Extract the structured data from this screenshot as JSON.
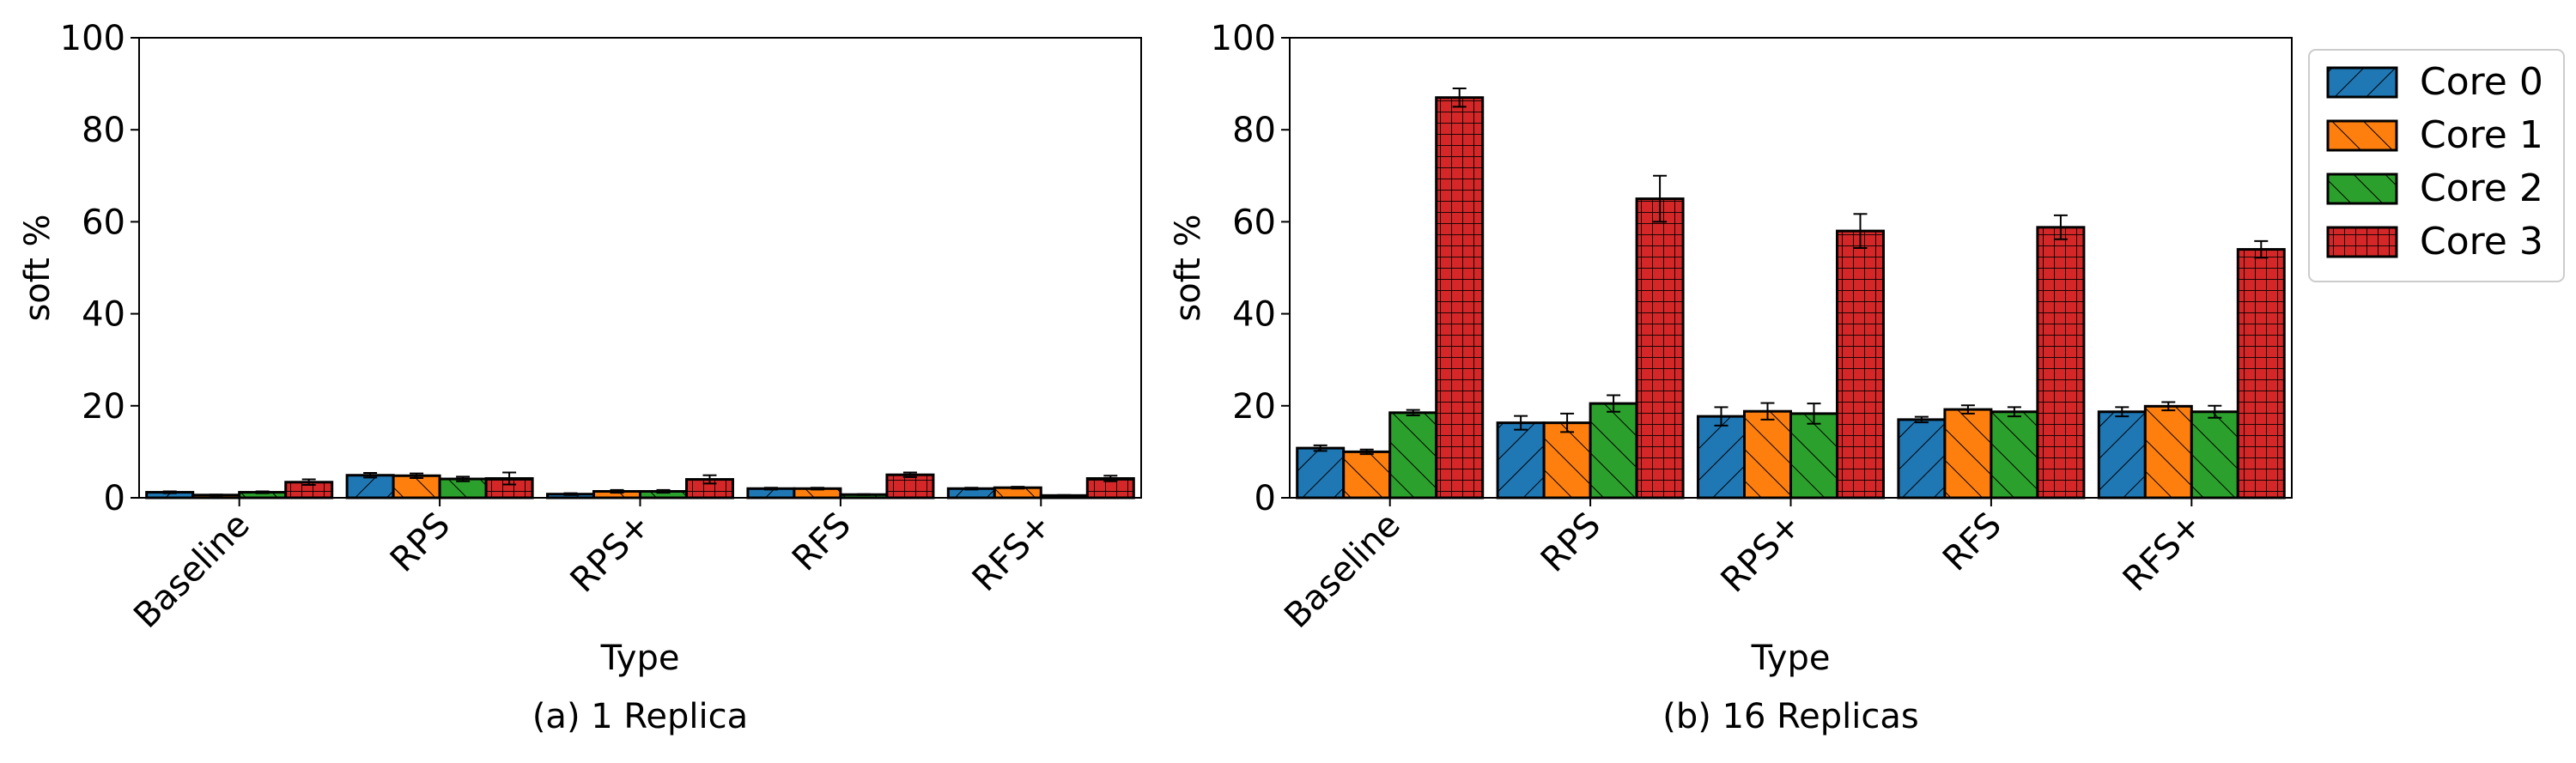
{
  "series_colors": {
    "Core 0": "#1f77b4",
    "Core 1": "#ff7f0e",
    "Core 2": "#2ca02c",
    "Core 3": "#d62728"
  },
  "legend": {
    "placement": "right, outside plot (b)",
    "entries": [
      "Core 0",
      "Core 1",
      "Core 2",
      "Core 3"
    ]
  },
  "chart_data": [
    {
      "type": "bar",
      "caption": "(a) 1 Replica",
      "xlabel": "Type",
      "ylabel": "soft %",
      "ylim": [
        0,
        100
      ],
      "yticks": [
        0,
        20,
        40,
        60,
        80,
        100
      ],
      "categories": [
        "Baseline",
        "RPS",
        "RPS+",
        "RFS",
        "RFS+"
      ],
      "series": [
        {
          "name": "Core 0",
          "values": [
            1.2,
            4.9,
            0.8,
            2.0,
            2.0
          ],
          "errors": [
            0.2,
            0.5,
            0.2,
            0.2,
            0.2
          ]
        },
        {
          "name": "Core 1",
          "values": [
            0.6,
            4.8,
            1.4,
            2.0,
            2.2
          ],
          "errors": [
            0.1,
            0.5,
            0.3,
            0.2,
            0.2
          ]
        },
        {
          "name": "Core 2",
          "values": [
            1.2,
            4.1,
            1.4,
            0.7,
            0.5
          ],
          "errors": [
            0.2,
            0.5,
            0.3,
            0.1,
            0.1
          ]
        },
        {
          "name": "Core 3",
          "values": [
            3.4,
            4.2,
            4.0,
            5.0,
            4.2
          ],
          "errors": [
            0.6,
            1.3,
            0.9,
            0.5,
            0.6
          ]
        }
      ]
    },
    {
      "type": "bar",
      "caption": "(b) 16 Replicas",
      "xlabel": "Type",
      "ylabel": "soft %",
      "ylim": [
        0,
        100
      ],
      "yticks": [
        0,
        20,
        40,
        60,
        80,
        100
      ],
      "categories": [
        "Baseline",
        "RPS",
        "RPS+",
        "RFS",
        "RFS+"
      ],
      "series": [
        {
          "name": "Core 0",
          "values": [
            10.8,
            16.3,
            17.7,
            17.0,
            18.7
          ],
          "errors": [
            0.6,
            1.5,
            2.0,
            0.6,
            1.0
          ]
        },
        {
          "name": "Core 1",
          "values": [
            10.0,
            16.3,
            18.8,
            19.2,
            19.9
          ],
          "errors": [
            0.5,
            2.0,
            1.8,
            0.9,
            0.9
          ]
        },
        {
          "name": "Core 2",
          "values": [
            18.5,
            20.5,
            18.3,
            18.7,
            18.7
          ],
          "errors": [
            0.6,
            1.8,
            2.2,
            1.0,
            1.3
          ]
        },
        {
          "name": "Core 3",
          "values": [
            87.0,
            65.0,
            58.0,
            58.8,
            54.0
          ],
          "errors": [
            2.0,
            5.0,
            3.7,
            2.6,
            1.8
          ]
        }
      ]
    }
  ]
}
